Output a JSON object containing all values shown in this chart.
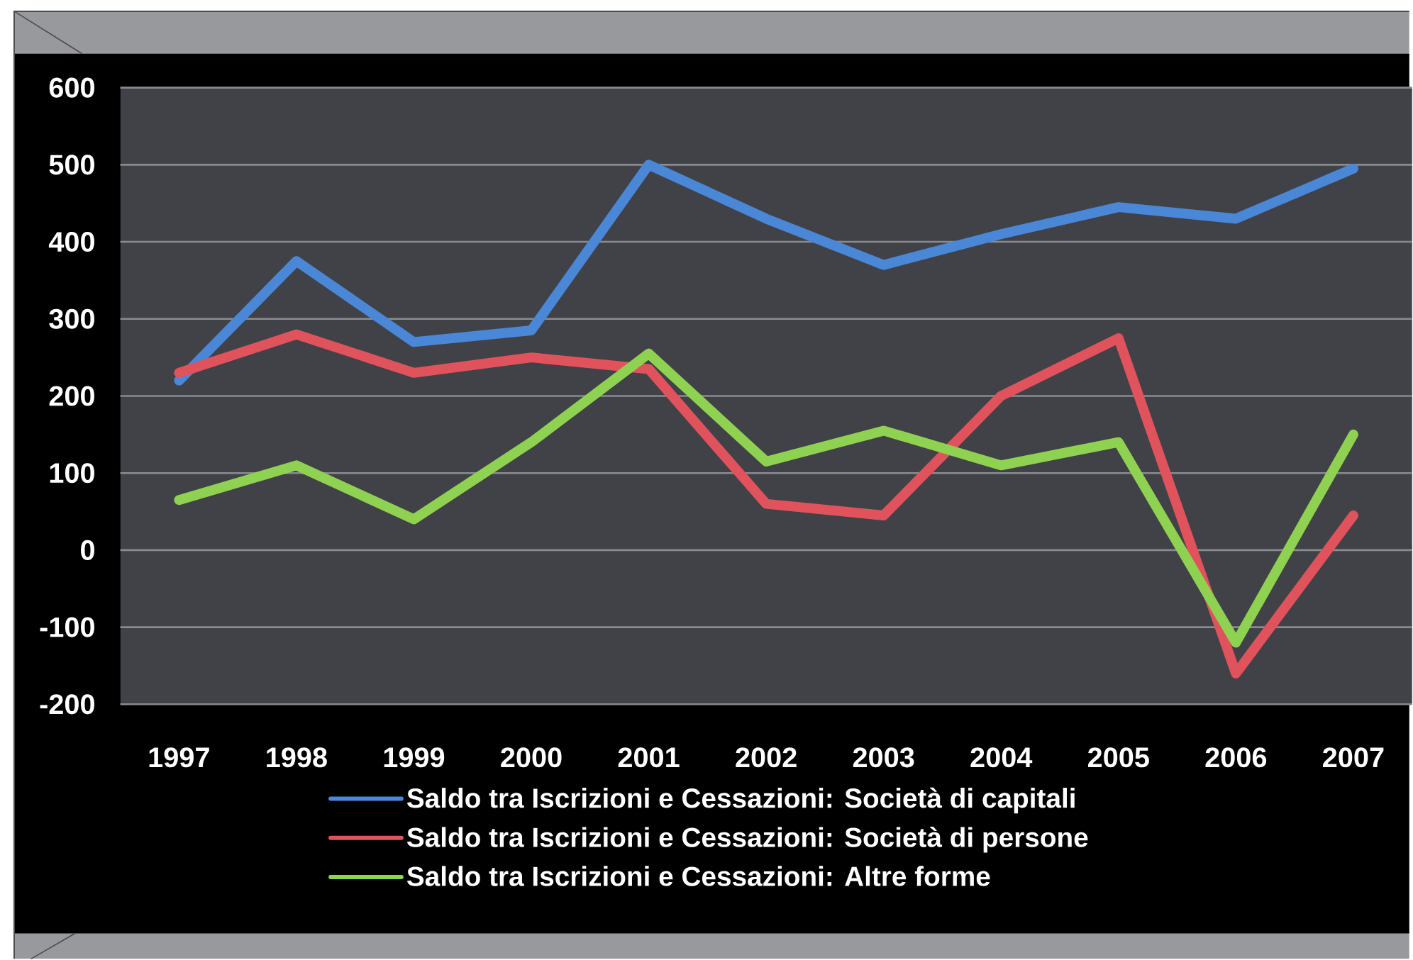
{
  "chart_data": {
    "type": "line",
    "categories": [
      "1997",
      "1998",
      "1999",
      "2000",
      "2001",
      "2002",
      "2003",
      "2004",
      "2005",
      "2006",
      "2007"
    ],
    "series": [
      {
        "name": "Saldo tra Iscrizioni e Cessazioni: Società di capitali",
        "color": "#4a87d6",
        "values": [
          220,
          375,
          270,
          285,
          500,
          430,
          370,
          410,
          445,
          430,
          495
        ]
      },
      {
        "name": "Saldo tra Iscrizioni e Cessazioni: Società di persone",
        "color": "#e0525c",
        "values": [
          230,
          280,
          230,
          250,
          235,
          60,
          45,
          200,
          275,
          -160,
          45
        ]
      },
      {
        "name": "Saldo tra Iscrizioni e Cessazioni: Altre forme",
        "color": "#8fd150",
        "values": [
          65,
          110,
          40,
          140,
          255,
          115,
          155,
          110,
          140,
          -120,
          150
        ]
      }
    ],
    "ylim": [
      -200,
      600
    ],
    "yticks": [
      -200,
      -100,
      0,
      100,
      200,
      300,
      400,
      500,
      600
    ],
    "grid": "y",
    "legend": "bottom",
    "line_style": "solid"
  }
}
